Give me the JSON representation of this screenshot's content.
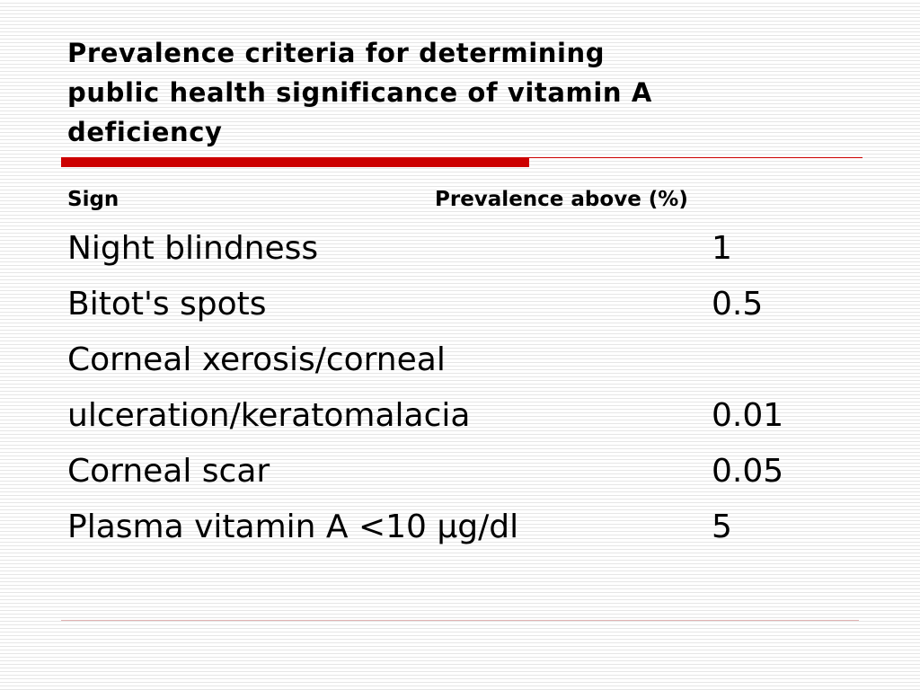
{
  "slide": {
    "title": " Prevalence criteria for determining\npublic health significance of vitamin A\ndeficiency"
  },
  "table": {
    "headers": {
      "sign": "Sign",
      "prevalence": "Prevalence above (%)"
    },
    "rows": [
      {
        "sign": "Night blindness",
        "value": "1"
      },
      {
        "sign": "Bitot's spots",
        "value": "0.5"
      },
      {
        "sign": "Corneal xerosis/corneal",
        "value": ""
      },
      {
        "sign": "ulceration/keratomalacia",
        "value": "0.01"
      },
      {
        "sign": "Corneal scar",
        "value": "0.05"
      },
      {
        "sign": "Plasma vitamin A <10 µg/dl",
        "value": "5"
      }
    ]
  },
  "colors": {
    "accent_red": "#cc0000",
    "stripe_gray": "#e6e6e6",
    "background": "#ffffff",
    "text": "#000000"
  }
}
